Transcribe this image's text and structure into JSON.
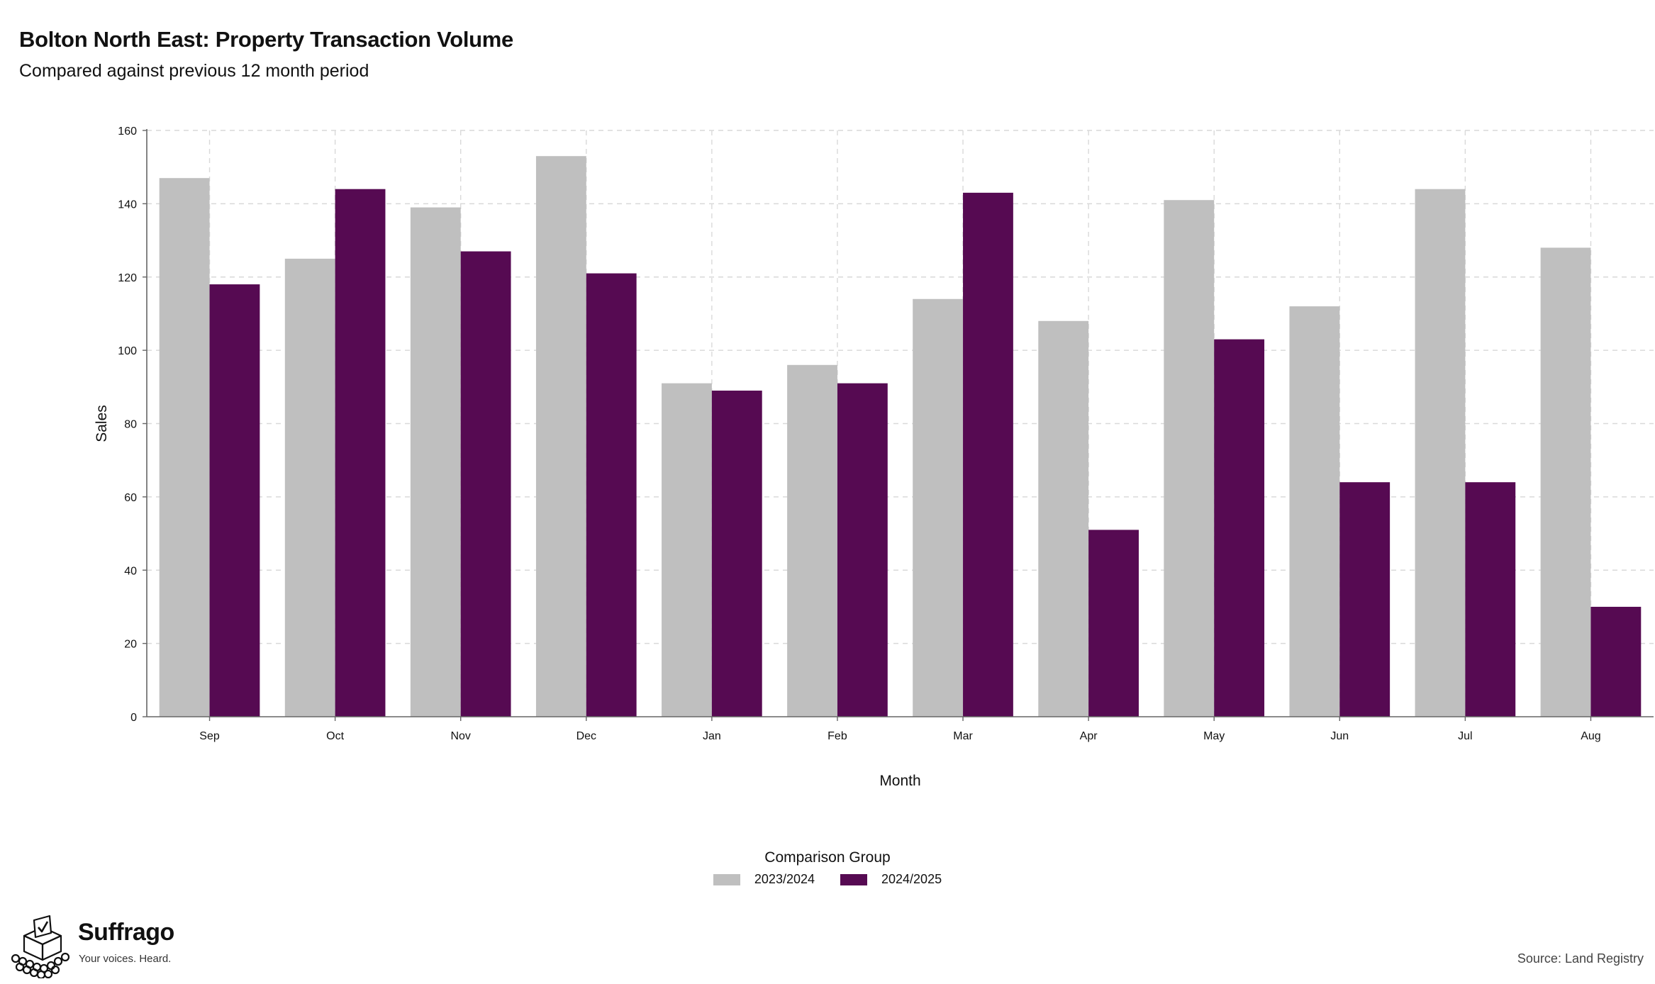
{
  "title": "Bolton North East: Property Transaction Volume",
  "subtitle": "Compared against previous 12 month period",
  "chart_data": {
    "type": "bar",
    "title": "Bolton North East: Property Transaction Volume",
    "subtitle": "Compared against previous 12 month period",
    "xlabel": "Month",
    "ylabel": "Sales",
    "categories": [
      "Sep",
      "Oct",
      "Nov",
      "Dec",
      "Jan",
      "Feb",
      "Mar",
      "Apr",
      "May",
      "Jun",
      "Jul",
      "Aug"
    ],
    "series": [
      {
        "name": "2023/2024",
        "color": "#bfbfbf",
        "values": [
          147,
          125,
          139,
          153,
          91,
          96,
          114,
          108,
          141,
          112,
          144,
          128
        ]
      },
      {
        "name": "2024/2025",
        "color": "#560a52",
        "values": [
          118,
          144,
          127,
          121,
          89,
          91,
          143,
          51,
          103,
          64,
          64,
          30
        ]
      }
    ],
    "ylim": [
      0,
      160
    ],
    "yticks": [
      0,
      20,
      40,
      60,
      80,
      100,
      120,
      140,
      160
    ],
    "grid": true,
    "legend": {
      "title": "Comparison Group",
      "position": "bottom-center"
    }
  },
  "branding": {
    "name": "Suffrago",
    "tagline": "Your voices. Heard."
  },
  "source": "Source: Land Registry"
}
